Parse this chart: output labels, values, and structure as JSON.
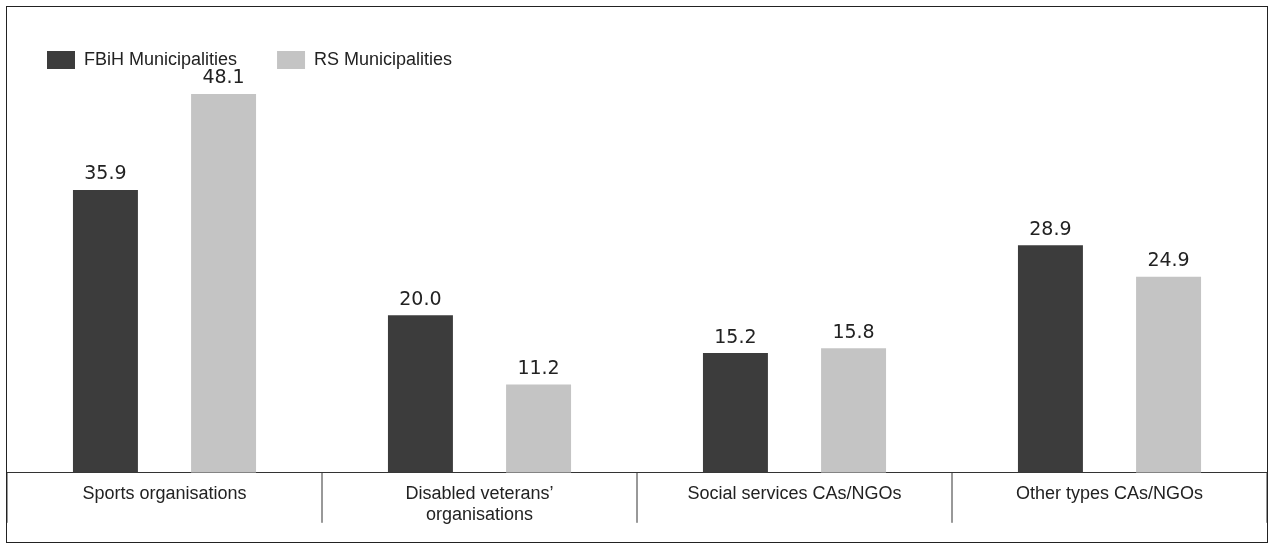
{
  "chart_data": {
    "type": "bar",
    "categories": [
      "Sports organisations",
      "Disabled veterans’ organisations",
      "Social services CAs/NGOs",
      "Other types CAs/NGOs"
    ],
    "series": [
      {
        "name": "FBiH Municipalities",
        "color": "#3c3c3c",
        "values": [
          35.9,
          20.0,
          15.2,
          28.9
        ],
        "value_labels": [
          "35.9",
          "20.0",
          "15.2",
          "28.9"
        ]
      },
      {
        "name": "RS Municipalities",
        "color": "#c4c4c4",
        "values": [
          48.1,
          11.2,
          15.8,
          24.9
        ],
        "value_labels": [
          "48.1",
          "11.2",
          "15.8",
          "24.9"
        ]
      }
    ],
    "grid": false,
    "legend": "top left"
  }
}
